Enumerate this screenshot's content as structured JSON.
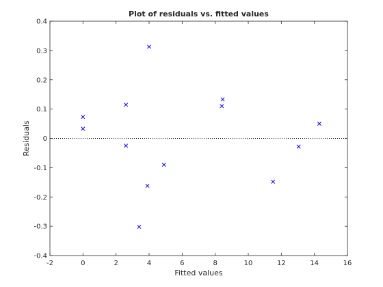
{
  "chart_data": {
    "type": "scatter",
    "title": "Plot of residuals vs. fitted values",
    "xlabel": "Fitted values",
    "ylabel": "Residuals",
    "xlim": [
      -2,
      16
    ],
    "ylim": [
      -0.4,
      0.4
    ],
    "xticks": [
      -2,
      0,
      2,
      4,
      6,
      8,
      10,
      12,
      14,
      16
    ],
    "xtick_labels": [
      "-2",
      "0",
      "2",
      "4",
      "6",
      "8",
      "10",
      "12",
      "14",
      "16"
    ],
    "yticks": [
      -0.4,
      -0.3,
      -0.2,
      -0.1,
      0,
      0.1,
      0.2,
      0.3,
      0.4
    ],
    "ytick_labels": [
      "-0.4",
      "-0.3",
      "-0.2",
      "-0.1",
      "0",
      "0.1",
      "0.2",
      "0.3",
      "0.4"
    ],
    "grid": false,
    "reference_line": {
      "y": 0,
      "style": "dotted",
      "color": "#000000"
    },
    "marker": "x",
    "marker_color": "#0000ff",
    "x": [
      0.0,
      0.0,
      2.6,
      2.6,
      3.4,
      3.9,
      4.0,
      4.9,
      8.4,
      8.45,
      11.5,
      13.05,
      14.3
    ],
    "y": [
      0.073,
      0.033,
      0.115,
      -0.025,
      -0.302,
      -0.162,
      0.313,
      -0.09,
      0.11,
      0.133,
      -0.148,
      -0.028,
      0.05
    ]
  }
}
